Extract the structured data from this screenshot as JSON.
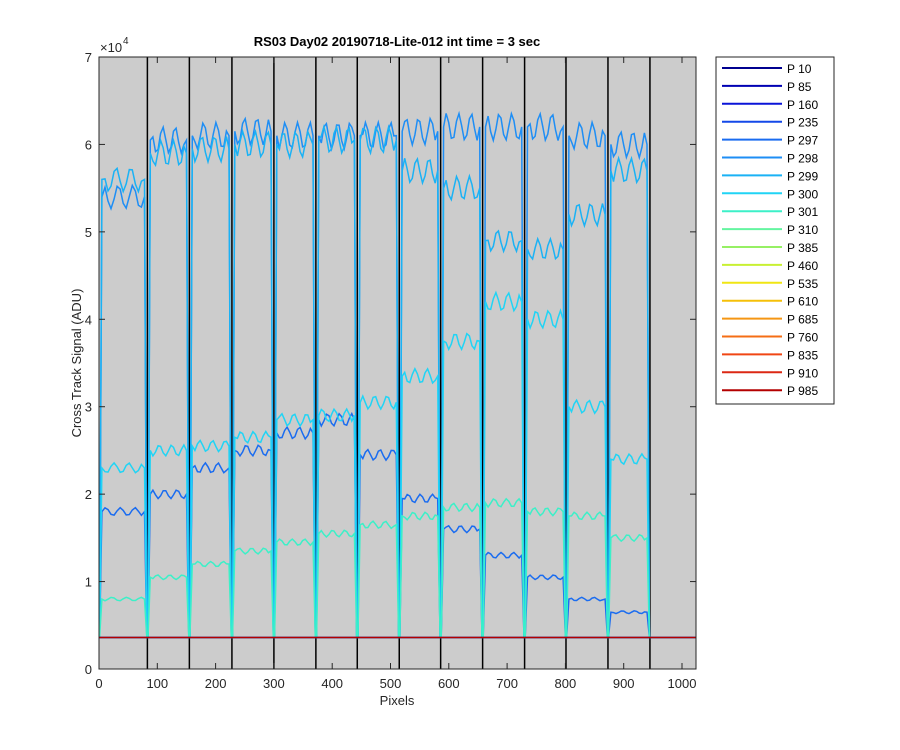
{
  "chart_data": {
    "type": "line",
    "title": "RS03 Day02 20190718-Lite-012 int time = 3 sec",
    "xlabel": "Pixels",
    "ylabel": "Cross Track Signal (ADU)",
    "y_exponent_label": "×10",
    "y_exponent_power": "4",
    "xlim": [
      0,
      1024
    ],
    "ylim": [
      0,
      70000
    ],
    "x_ticks": [
      0,
      100,
      200,
      300,
      400,
      500,
      600,
      700,
      800,
      900,
      1000
    ],
    "x_tick_labels": [
      "0",
      "100",
      "200",
      "300",
      "400",
      "500",
      "600",
      "700",
      "800",
      "900",
      "1000"
    ],
    "y_ticks": [
      0,
      10000,
      20000,
      30000,
      40000,
      50000,
      60000,
      70000
    ],
    "y_tick_labels": [
      "0",
      "1",
      "2",
      "3",
      "4",
      "5",
      "6",
      "7"
    ],
    "grid": false,
    "background_color": "#cccccc",
    "baseline_adu": 3600,
    "segment_boundaries": [
      83,
      155,
      228,
      300,
      372,
      443,
      515,
      586,
      658,
      730,
      801,
      873,
      945
    ],
    "legend_position": "outside-top-right",
    "series": [
      {
        "name": "P 10",
        "color": "#00008f"
      },
      {
        "name": "P 85",
        "color": "#0000b3"
      },
      {
        "name": "P 160",
        "color": "#0a14d8"
      },
      {
        "name": "P 235",
        "color": "#1448e8"
      },
      {
        "name": "P 297",
        "color": "#1a6cf0"
      },
      {
        "name": "P 298",
        "color": "#1e8ef5"
      },
      {
        "name": "P 299",
        "color": "#1ab2f5"
      },
      {
        "name": "P 300",
        "color": "#20d4f5"
      },
      {
        "name": "P 301",
        "color": "#3cf0c8"
      },
      {
        "name": "P 310",
        "color": "#64f5a0"
      },
      {
        "name": "P 385",
        "color": "#96f064"
      },
      {
        "name": "P 460",
        "color": "#c8f032"
      },
      {
        "name": "P 535",
        "color": "#f0e614"
      },
      {
        "name": "P 610",
        "color": "#f5c00a"
      },
      {
        "name": "P 685",
        "color": "#f59614"
      },
      {
        "name": "P 760",
        "color": "#f56e14"
      },
      {
        "name": "P 835",
        "color": "#f04614"
      },
      {
        "name": "P 910",
        "color": "#dc2814"
      },
      {
        "name": "P 985",
        "color": "#b40000"
      }
    ],
    "visible_profiles": [
      {
        "series": "P 297",
        "color": "#1a6cf0",
        "segment_levels": [
          18000,
          20000,
          23000,
          25000,
          27000,
          28500,
          24500,
          19500,
          16000,
          13000,
          10500,
          8000,
          6500
        ]
      },
      {
        "series": "P 298",
        "color": "#1e8ef5",
        "segment_levels": [
          54000,
          60500,
          61000,
          61500,
          61000,
          61000,
          61000,
          61500,
          62000,
          62000,
          62000,
          61000,
          60000
        ]
      },
      {
        "series": "P 299",
        "color": "#1ab2f5",
        "segment_levels": [
          56000,
          59000,
          59500,
          60000,
          60000,
          60500,
          60500,
          57000,
          55000,
          49000,
          48000,
          52000,
          57000
        ]
      },
      {
        "series": "P 300",
        "color": "#20d4f5",
        "segment_levels": [
          23000,
          25000,
          25500,
          26500,
          28500,
          29000,
          30500,
          33500,
          37500,
          42000,
          40000,
          30000,
          24000
        ]
      },
      {
        "series": "P 301",
        "color": "#3cf0c8",
        "segment_levels": [
          8000,
          10500,
          12000,
          13500,
          14500,
          15500,
          16500,
          17500,
          18500,
          19000,
          18000,
          17500,
          15000
        ]
      }
    ]
  }
}
